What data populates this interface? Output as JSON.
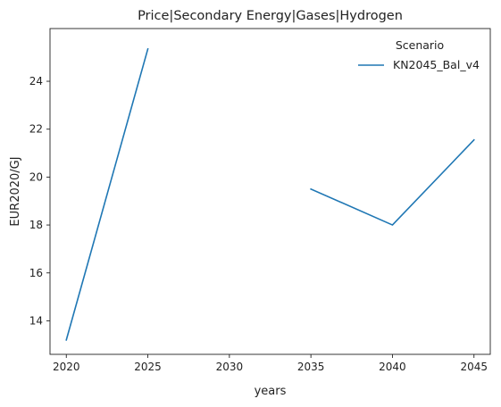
{
  "chart_data": {
    "type": "line",
    "title": "Price|Secondary Energy|Gases|Hydrogen",
    "xlabel": "years",
    "ylabel": "EUR2020/GJ",
    "xlim": [
      2019.0,
      2046.0
    ],
    "ylim": [
      12.6,
      26.2
    ],
    "xticks": [
      2020,
      2025,
      2030,
      2035,
      2040,
      2045
    ],
    "yticks": [
      14,
      16,
      18,
      20,
      22,
      24
    ],
    "grid": false,
    "legend": {
      "title": "Scenario",
      "placement": "top-right"
    },
    "colors": {
      "series": "#1f77b4",
      "axes": "#222222",
      "background": "#ffffff"
    },
    "series": [
      {
        "name": "KN2045_Bal_v4",
        "segments": [
          [
            {
              "x": 2020,
              "y": 13.2
            },
            {
              "x": 2025,
              "y": 25.35
            }
          ],
          [
            {
              "x": 2035,
              "y": 19.5
            },
            {
              "x": 2040,
              "y": 18.0
            },
            {
              "x": 2045,
              "y": 21.55
            }
          ]
        ]
      }
    ]
  }
}
